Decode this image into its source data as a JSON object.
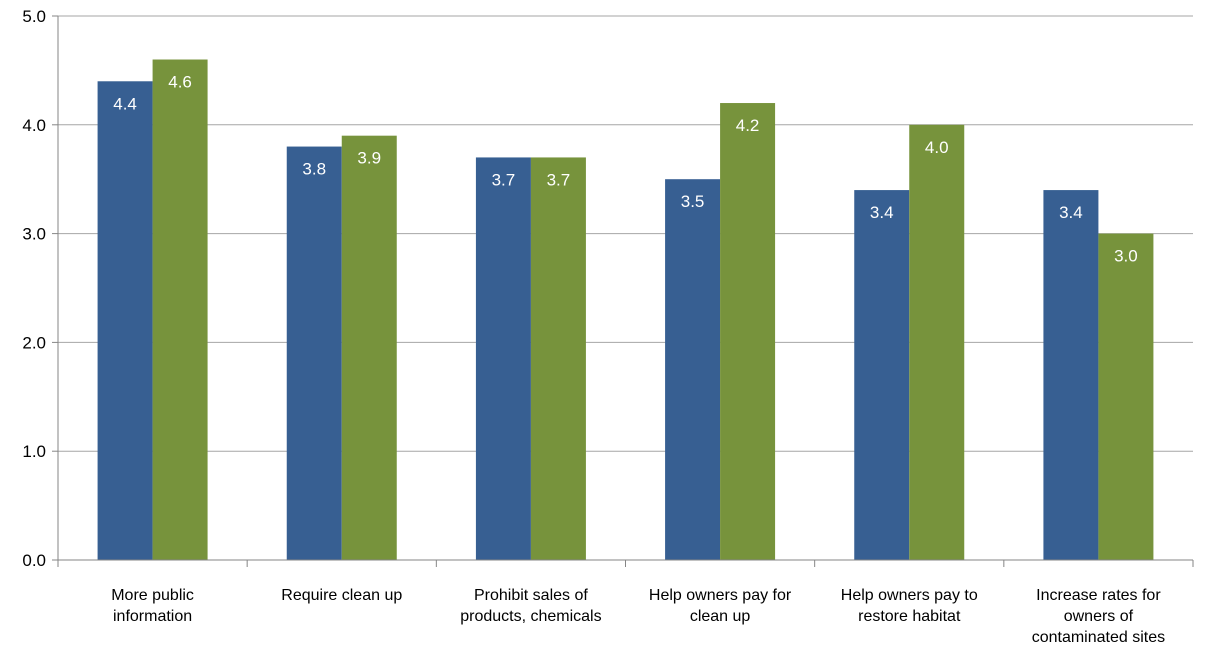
{
  "chart_data": {
    "type": "bar",
    "categories": [
      [
        "More public",
        "information"
      ],
      [
        "Require clean up"
      ],
      [
        "Prohibit sales of",
        "products, chemicals"
      ],
      [
        "Help owners pay for",
        "clean up"
      ],
      [
        "Help owners pay to",
        "restore habitat"
      ],
      [
        "Increase rates for",
        "owners of",
        "contaminated sites"
      ]
    ],
    "series": [
      {
        "values": [
          4.4,
          3.8,
          3.7,
          3.5,
          3.4,
          3.4
        ],
        "color": "#375F92"
      },
      {
        "values": [
          4.6,
          3.9,
          3.7,
          4.2,
          4.0,
          3.0
        ],
        "color": "#77933C"
      }
    ],
    "ylim": [
      0,
      5
    ],
    "yticks": [
      "0.0",
      "1.0",
      "2.0",
      "3.0",
      "4.0",
      "5.0"
    ],
    "grid": true,
    "gridColor": "#A6A6A6",
    "axisColor": "#868686",
    "legend": "none"
  }
}
